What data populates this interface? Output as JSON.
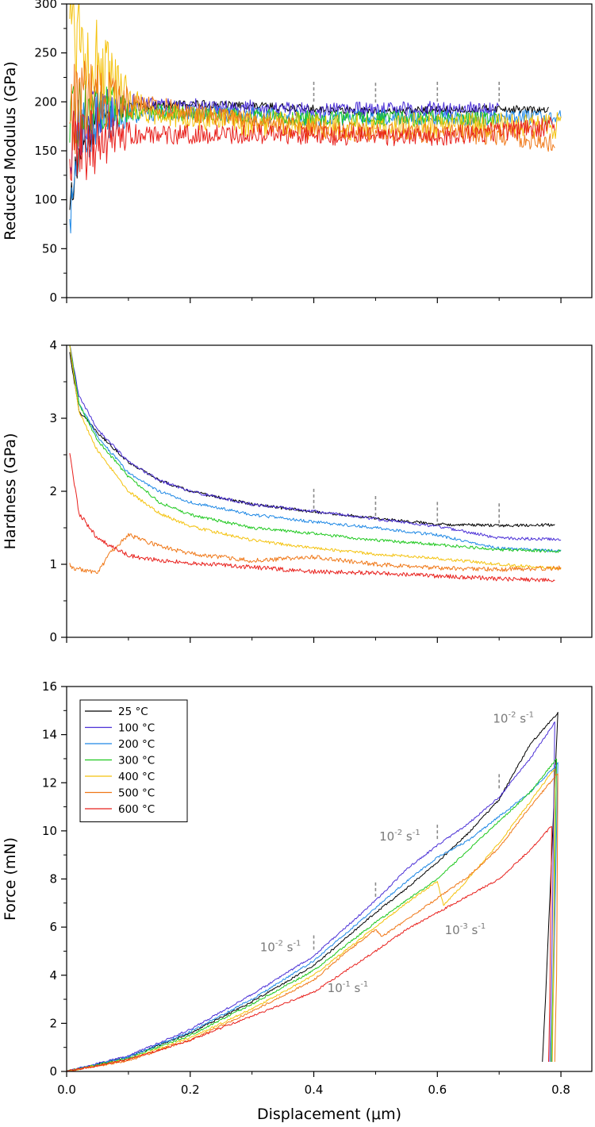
{
  "chart_data": [
    {
      "type": "line",
      "ylabel": "Reduced Modulus (GPa)",
      "xlabel": "",
      "xlim": [
        0,
        0.85
      ],
      "ylim": [
        0,
        300
      ],
      "yticks": [
        0,
        50,
        100,
        150,
        200,
        250,
        300
      ],
      "yticklabels": [
        "0",
        "50",
        "100",
        "150",
        "200",
        "250",
        "300"
      ],
      "xticks": [
        0,
        0.2,
        0.4,
        0.6,
        0.8
      ],
      "show_x_ticklabels": false,
      "markers_x": [
        0.4,
        0.5,
        0.6,
        0.7
      ],
      "series": [
        {
          "name": "25 °C",
          "color": "#000000",
          "noise": 4,
          "x": [
            0.005,
            0.02,
            0.05,
            0.1,
            0.2,
            0.3,
            0.4,
            0.5,
            0.6,
            0.7,
            0.78
          ],
          "y": [
            100,
            145,
            180,
            195,
            198,
            196,
            193,
            190,
            192,
            193,
            191
          ]
        },
        {
          "name": "100 °C",
          "color": "#4a2fd6",
          "noise": 8,
          "x": [
            0.005,
            0.02,
            0.05,
            0.1,
            0.2,
            0.3,
            0.4,
            0.5,
            0.6,
            0.7
          ],
          "y": [
            150,
            175,
            190,
            197,
            196,
            194,
            191,
            192,
            193,
            192
          ]
        },
        {
          "name": "200 °C",
          "color": "#1e88e5",
          "noise": 8,
          "x": [
            0.005,
            0.02,
            0.05,
            0.1,
            0.2,
            0.3,
            0.4,
            0.5,
            0.6,
            0.7,
            0.8
          ],
          "y": [
            95,
            160,
            182,
            188,
            189,
            187,
            183,
            184,
            184,
            183,
            185
          ]
        },
        {
          "name": "300 °C",
          "color": "#1ec81e",
          "noise": 8,
          "x": [
            0.005,
            0.02,
            0.05,
            0.1,
            0.2,
            0.3,
            0.4,
            0.5,
            0.6,
            0.7
          ],
          "y": [
            170,
            190,
            198,
            192,
            188,
            185,
            183,
            182,
            183,
            182
          ]
        },
        {
          "name": "400 °C",
          "color": "#f4c20d",
          "noise": 14,
          "x": [
            0.005,
            0.02,
            0.04,
            0.07,
            0.1,
            0.15,
            0.2,
            0.3,
            0.4,
            0.5,
            0.6,
            0.7,
            0.8
          ],
          "y": [
            300,
            275,
            245,
            218,
            200,
            188,
            183,
            178,
            175,
            174,
            176,
            175,
            176
          ]
        },
        {
          "name": "500 °C",
          "color": "#f07818",
          "noise": 10,
          "x": [
            0.005,
            0.02,
            0.05,
            0.1,
            0.2,
            0.3,
            0.4,
            0.5,
            0.6,
            0.7,
            0.79
          ],
          "y": [
            185,
            200,
            205,
            200,
            190,
            180,
            172,
            168,
            168,
            166,
            158
          ]
        },
        {
          "name": "600 °C",
          "color": "#e8201c",
          "noise": 10,
          "x": [
            0.005,
            0.02,
            0.05,
            0.1,
            0.2,
            0.3,
            0.4,
            0.5,
            0.6,
            0.7,
            0.79
          ],
          "y": [
            145,
            155,
            162,
            165,
            167,
            167,
            165,
            165,
            165,
            170,
            175
          ]
        }
      ]
    },
    {
      "type": "line",
      "ylabel": "Hardness (GPa)",
      "xlabel": "",
      "xlim": [
        0,
        0.85
      ],
      "ylim": [
        0,
        4
      ],
      "yticks": [
        0,
        1,
        2,
        3,
        4
      ],
      "yticklabels": [
        "0",
        "1",
        "2",
        "3",
        "4"
      ],
      "xticks": [
        0,
        0.2,
        0.4,
        0.6,
        0.8
      ],
      "show_x_ticklabels": false,
      "markers_x": [
        0.4,
        0.5,
        0.6,
        0.7
      ],
      "series": [
        {
          "name": "25 °C",
          "color": "#000000",
          "noise": 0.02,
          "x": [
            0.005,
            0.02,
            0.05,
            0.1,
            0.15,
            0.2,
            0.3,
            0.4,
            0.5,
            0.6,
            0.7,
            0.79
          ],
          "y": [
            3.9,
            3.1,
            2.8,
            2.4,
            2.15,
            2.0,
            1.82,
            1.72,
            1.63,
            1.55,
            1.53,
            1.54
          ]
        },
        {
          "name": "100 °C",
          "color": "#4a2fd6",
          "noise": 0.02,
          "x": [
            0.005,
            0.02,
            0.05,
            0.1,
            0.15,
            0.2,
            0.3,
            0.4,
            0.5,
            0.6,
            0.7,
            0.8
          ],
          "y": [
            4.0,
            3.3,
            2.85,
            2.4,
            2.15,
            2.0,
            1.82,
            1.73,
            1.62,
            1.52,
            1.36,
            1.34
          ]
        },
        {
          "name": "200 °C",
          "color": "#1e88e5",
          "noise": 0.02,
          "x": [
            0.005,
            0.02,
            0.05,
            0.1,
            0.15,
            0.2,
            0.3,
            0.4,
            0.5,
            0.6,
            0.7,
            0.8
          ],
          "y": [
            4.0,
            3.2,
            2.75,
            2.25,
            2.0,
            1.85,
            1.68,
            1.58,
            1.5,
            1.4,
            1.22,
            1.18
          ]
        },
        {
          "name": "300 °C",
          "color": "#1ec81e",
          "noise": 0.02,
          "x": [
            0.005,
            0.02,
            0.05,
            0.1,
            0.15,
            0.2,
            0.3,
            0.4,
            0.5,
            0.6,
            0.7,
            0.8
          ],
          "y": [
            4.0,
            3.2,
            2.7,
            2.2,
            1.85,
            1.68,
            1.5,
            1.42,
            1.33,
            1.27,
            1.2,
            1.18
          ]
        },
        {
          "name": "400 °C",
          "color": "#f4c20d",
          "noise": 0.02,
          "x": [
            0.005,
            0.02,
            0.05,
            0.1,
            0.15,
            0.2,
            0.3,
            0.4,
            0.5,
            0.6,
            0.7,
            0.8
          ],
          "y": [
            4.0,
            3.1,
            2.55,
            2.0,
            1.7,
            1.52,
            1.33,
            1.22,
            1.14,
            1.08,
            1.0,
            0.94
          ]
        },
        {
          "name": "500 °C",
          "color": "#f07818",
          "noise": 0.03,
          "x": [
            0.005,
            0.01,
            0.03,
            0.05,
            0.07,
            0.1,
            0.15,
            0.2,
            0.3,
            0.4,
            0.5,
            0.6,
            0.7,
            0.8
          ],
          "y": [
            1.0,
            0.95,
            0.92,
            0.88,
            1.15,
            1.4,
            1.25,
            1.15,
            1.05,
            1.1,
            1.0,
            0.95,
            0.93,
            0.95
          ]
        },
        {
          "name": "600 °C",
          "color": "#e8201c",
          "noise": 0.03,
          "x": [
            0.005,
            0.02,
            0.05,
            0.1,
            0.15,
            0.2,
            0.3,
            0.4,
            0.5,
            0.6,
            0.7,
            0.79
          ],
          "y": [
            2.5,
            1.7,
            1.35,
            1.12,
            1.05,
            1.02,
            0.96,
            0.9,
            0.88,
            0.84,
            0.8,
            0.78
          ]
        }
      ]
    },
    {
      "type": "line",
      "ylabel": "Force (mN)",
      "xlabel": "Displacement (μm)",
      "xlim": [
        0,
        0.85
      ],
      "ylim": [
        0,
        16
      ],
      "yticks": [
        0,
        2,
        4,
        6,
        8,
        10,
        12,
        14,
        16
      ],
      "yticklabels": [
        "0",
        "2",
        "4",
        "6",
        "8",
        "10",
        "12",
        "14",
        "16"
      ],
      "xticks": [
        0,
        0.2,
        0.4,
        0.6,
        0.8
      ],
      "xticklabels": [
        "0.0",
        "0.2",
        "0.4",
        "0.6",
        "0.8"
      ],
      "show_x_ticklabels": true,
      "markers_x": [
        0.4,
        0.5,
        0.6,
        0.7
      ],
      "marker_y": [
        4.8,
        7.0,
        9.4,
        11.5
      ],
      "legend": {
        "position": "top-left",
        "entries": [
          "25 °C",
          "100 °C",
          "200 °C",
          "300 °C",
          "400 °C",
          "500 °C",
          "600 °C"
        ]
      },
      "annotations": [
        {
          "base": "10",
          "exp": "-2",
          "unit": "s",
          "uexp": "-1",
          "x": 0.313,
          "y": 5.0
        },
        {
          "base": "10",
          "exp": "-1",
          "unit": "s",
          "uexp": "-1",
          "x": 0.422,
          "y": 3.3
        },
        {
          "base": "10",
          "exp": "-2",
          "unit": "s",
          "uexp": "-1",
          "x": 0.506,
          "y": 9.6
        },
        {
          "base": "10",
          "exp": "-3",
          "unit": "s",
          "uexp": "-1",
          "x": 0.612,
          "y": 5.7
        },
        {
          "base": "10",
          "exp": "-2",
          "unit": "s",
          "uexp": "-1",
          "x": 0.69,
          "y": 14.5
        }
      ],
      "series": [
        {
          "name": "25 °C",
          "color": "#000000",
          "noise": 0.04,
          "x": [
            0,
            0.1,
            0.2,
            0.3,
            0.4,
            0.5,
            0.55,
            0.6,
            0.65,
            0.7,
            0.75,
            0.795,
            0.775,
            0.77
          ],
          "y": [
            0,
            0.6,
            1.6,
            2.9,
            4.4,
            6.6,
            7.6,
            8.7,
            9.9,
            11.3,
            13.6,
            14.9,
            3.0,
            0.4
          ]
        },
        {
          "name": "100 °C",
          "color": "#4a2fd6",
          "noise": 0.04,
          "x": [
            0,
            0.1,
            0.2,
            0.3,
            0.4,
            0.5,
            0.55,
            0.6,
            0.65,
            0.7,
            0.75,
            0.79,
            0.785,
            0.782
          ],
          "y": [
            0,
            0.65,
            1.75,
            3.2,
            4.8,
            7.1,
            8.4,
            9.4,
            10.3,
            11.4,
            13.0,
            14.5,
            4.0,
            0.4
          ]
        },
        {
          "name": "200 °C",
          "color": "#1e88e5",
          "noise": 0.04,
          "x": [
            0,
            0.1,
            0.2,
            0.3,
            0.4,
            0.5,
            0.55,
            0.6,
            0.65,
            0.7,
            0.75,
            0.795,
            0.788,
            0.785
          ],
          "y": [
            0,
            0.6,
            1.65,
            3.0,
            4.6,
            6.8,
            7.9,
            8.9,
            9.6,
            10.6,
            11.6,
            12.8,
            3.5,
            0.4
          ]
        },
        {
          "name": "300 °C",
          "color": "#1ec81e",
          "noise": 0.04,
          "x": [
            0,
            0.1,
            0.2,
            0.3,
            0.4,
            0.5,
            0.55,
            0.6,
            0.65,
            0.7,
            0.75,
            0.793,
            0.787,
            0.784
          ],
          "y": [
            0,
            0.55,
            1.5,
            2.8,
            4.2,
            6.2,
            7.1,
            8.0,
            9.2,
            10.4,
            11.6,
            13.0,
            3.5,
            0.4
          ]
        },
        {
          "name": "400 °C",
          "color": "#f4c20d",
          "noise": 0.04,
          "x": [
            0,
            0.1,
            0.2,
            0.3,
            0.4,
            0.5,
            0.55,
            0.6,
            0.61,
            0.65,
            0.7,
            0.75,
            0.79,
            0.788,
            0.786
          ],
          "y": [
            0,
            0.5,
            1.4,
            2.6,
            4.0,
            6.0,
            7.0,
            7.9,
            6.9,
            8.0,
            9.5,
            11.2,
            12.6,
            4.0,
            0.4
          ]
        },
        {
          "name": "500 °C",
          "color": "#f07818",
          "noise": 0.04,
          "x": [
            0,
            0.1,
            0.2,
            0.3,
            0.4,
            0.45,
            0.5,
            0.51,
            0.55,
            0.6,
            0.65,
            0.7,
            0.75,
            0.795,
            0.793,
            0.79
          ],
          "y": [
            0,
            0.45,
            1.3,
            2.5,
            3.8,
            4.9,
            5.9,
            5.6,
            6.3,
            7.2,
            8.1,
            9.3,
            11.0,
            12.4,
            4.0,
            0.4
          ]
        },
        {
          "name": "600 °C",
          "color": "#e8201c",
          "noise": 0.04,
          "x": [
            0,
            0.1,
            0.2,
            0.3,
            0.4,
            0.5,
            0.55,
            0.6,
            0.65,
            0.7,
            0.75,
            0.785,
            0.782,
            0.78
          ],
          "y": [
            0,
            0.5,
            1.3,
            2.3,
            3.3,
            5.0,
            5.9,
            6.6,
            7.3,
            8.0,
            9.2,
            10.2,
            3.0,
            0.4
          ]
        }
      ]
    }
  ]
}
